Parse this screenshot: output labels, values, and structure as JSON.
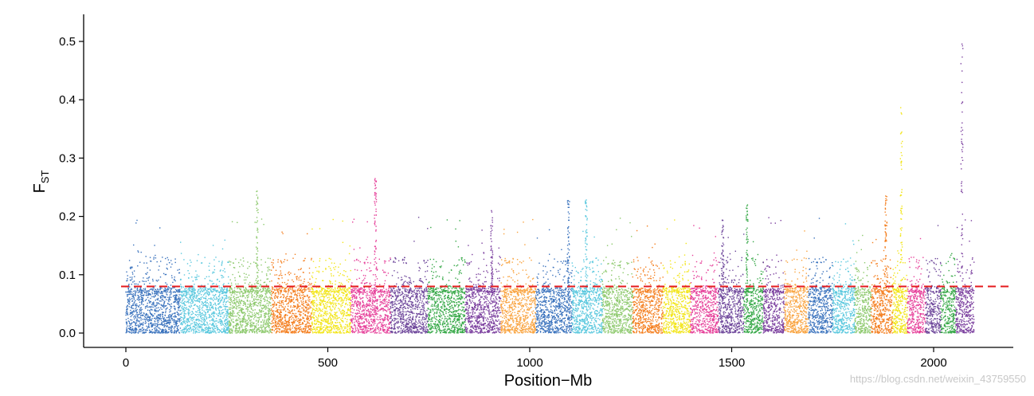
{
  "chart_data": {
    "type": "scatter",
    "title": "",
    "xlabel": "Position−Mb",
    "ylabel_main": "F",
    "ylabel_sub": "ST",
    "xlim": [
      -100,
      2200
    ],
    "ylim": [
      -0.02,
      0.545
    ],
    "x_ticks": [
      0,
      500,
      1000,
      1500,
      2000
    ],
    "x_tick_labels": [
      "0",
      "500",
      "1000",
      "1500",
      "2000"
    ],
    "y_ticks": [
      0.0,
      0.1,
      0.2,
      0.3,
      0.4,
      0.5
    ],
    "y_tick_labels": [
      "0.0",
      "0.1",
      "0.2",
      "0.3",
      "0.4",
      "0.5"
    ],
    "grid": false,
    "threshold": {
      "y": 0.08,
      "color": "#e41a1c",
      "style": "dashed"
    },
    "chromosomes": [
      {
        "start": 0,
        "end": 135,
        "color": "#3b73bd"
      },
      {
        "start": 135,
        "end": 255,
        "color": "#5ac8de"
      },
      {
        "start": 255,
        "end": 360,
        "color": "#8dc96d"
      },
      {
        "start": 360,
        "end": 460,
        "color": "#f47f20"
      },
      {
        "start": 460,
        "end": 557,
        "color": "#f2e51a"
      },
      {
        "start": 557,
        "end": 655,
        "color": "#e6409a"
      },
      {
        "start": 655,
        "end": 748,
        "color": "#6e479b"
      },
      {
        "start": 748,
        "end": 840,
        "color": "#36a847"
      },
      {
        "start": 840,
        "end": 928,
        "color": "#7b3f9e"
      },
      {
        "start": 928,
        "end": 1015,
        "color": "#f9a440"
      },
      {
        "start": 1015,
        "end": 1105,
        "color": "#3b73bd"
      },
      {
        "start": 1105,
        "end": 1180,
        "color": "#5ac8de"
      },
      {
        "start": 1180,
        "end": 1255,
        "color": "#8dc96d"
      },
      {
        "start": 1255,
        "end": 1330,
        "color": "#f47f20"
      },
      {
        "start": 1330,
        "end": 1398,
        "color": "#f2e51a"
      },
      {
        "start": 1398,
        "end": 1467,
        "color": "#e6409a"
      },
      {
        "start": 1467,
        "end": 1530,
        "color": "#6e479b"
      },
      {
        "start": 1530,
        "end": 1578,
        "color": "#36a847"
      },
      {
        "start": 1578,
        "end": 1630,
        "color": "#7b3f9e"
      },
      {
        "start": 1630,
        "end": 1690,
        "color": "#f9a440"
      },
      {
        "start": 1690,
        "end": 1750,
        "color": "#3b73bd"
      },
      {
        "start": 1750,
        "end": 1805,
        "color": "#5ac8de"
      },
      {
        "start": 1805,
        "end": 1845,
        "color": "#8dc96d"
      },
      {
        "start": 1845,
        "end": 1898,
        "color": "#f47f20"
      },
      {
        "start": 1898,
        "end": 1935,
        "color": "#f2e51a"
      },
      {
        "start": 1935,
        "end": 1980,
        "color": "#e6409a"
      },
      {
        "start": 1980,
        "end": 2018,
        "color": "#6e479b"
      },
      {
        "start": 2018,
        "end": 2055,
        "color": "#36a847"
      },
      {
        "start": 2055,
        "end": 2100,
        "color": "#7b3f9e"
      }
    ],
    "peaks": [
      {
        "x": 618,
        "fst": 0.265
      },
      {
        "x": 906,
        "fst": 0.21
      },
      {
        "x": 1096,
        "fst": 0.23
      },
      {
        "x": 1140,
        "fst": 0.23
      },
      {
        "x": 1538,
        "fst": 0.225
      },
      {
        "x": 1920,
        "fst": 0.4
      },
      {
        "x": 2070,
        "fst": 0.52
      },
      {
        "x": 1882,
        "fst": 0.235
      },
      {
        "x": 325,
        "fst": 0.245
      },
      {
        "x": 1478,
        "fst": 0.195
      }
    ]
  },
  "watermark": "https://blog.csdn.net/weixin_43759550"
}
